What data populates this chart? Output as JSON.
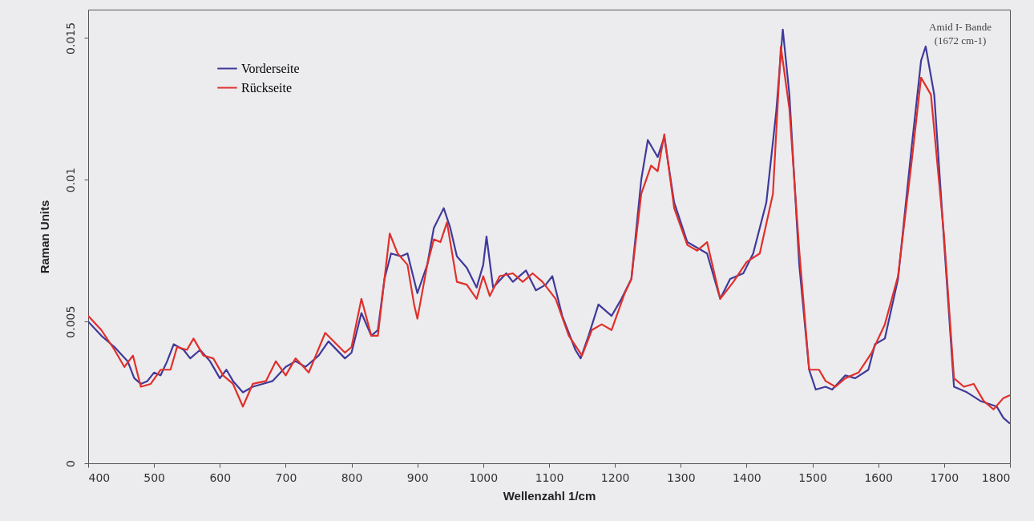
{
  "chart_data": {
    "type": "line",
    "xlabel": "Wellenzahl 1/cm",
    "ylabel": "Raman Units",
    "xlim": [
      400,
      1800
    ],
    "ylim": [
      0,
      0.016
    ],
    "xticks": [
      400,
      500,
      600,
      700,
      800,
      900,
      1000,
      1100,
      1200,
      1300,
      1400,
      1500,
      1600,
      1700,
      1800
    ],
    "yticks": [
      {
        "value": 0,
        "label": "0"
      },
      0.005,
      {
        "value": 0.01,
        "label": "0.01"
      },
      0.015
    ],
    "grid": false,
    "legend": "top left",
    "marker": "none",
    "line_style": "solid",
    "annotations": [
      "Amid I- Bande\n(1672 cm-1)"
    ],
    "series": [
      {
        "name": "Vorderseite",
        "color": "#3f3a9a",
        "x": [
          400,
          420,
          440,
          460,
          470,
          480,
          490,
          500,
          510,
          520,
          530,
          545,
          555,
          570,
          585,
          600,
          610,
          620,
          635,
          650,
          665,
          680,
          700,
          715,
          730,
          750,
          765,
          790,
          800,
          815,
          830,
          840,
          850,
          860,
          875,
          885,
          900,
          915,
          925,
          940,
          950,
          960,
          975,
          990,
          1000,
          1005,
          1015,
          1035,
          1045,
          1065,
          1080,
          1095,
          1105,
          1120,
          1140,
          1148,
          1160,
          1175,
          1195,
          1210,
          1225,
          1240,
          1250,
          1265,
          1275,
          1290,
          1310,
          1340,
          1360,
          1375,
          1395,
          1410,
          1430,
          1445,
          1455,
          1465,
          1480,
          1495,
          1505,
          1520,
          1530,
          1550,
          1565,
          1585,
          1595,
          1610,
          1630,
          1650,
          1665,
          1672,
          1685,
          1700,
          1715,
          1735,
          1755,
          1780,
          1790,
          1800
        ],
        "values": [
          0.005,
          0.0045,
          0.0041,
          0.0036,
          0.003,
          0.0028,
          0.0029,
          0.0032,
          0.0031,
          0.0036,
          0.0042,
          0.004,
          0.0037,
          0.004,
          0.0036,
          0.003,
          0.0033,
          0.0029,
          0.0025,
          0.0027,
          0.0028,
          0.0029,
          0.0034,
          0.0036,
          0.0034,
          0.0038,
          0.0043,
          0.0037,
          0.0039,
          0.0053,
          0.0045,
          0.0047,
          0.0065,
          0.0074,
          0.0073,
          0.0074,
          0.006,
          0.007,
          0.0083,
          0.009,
          0.0083,
          0.0073,
          0.0069,
          0.0062,
          0.007,
          0.008,
          0.0062,
          0.0067,
          0.0064,
          0.0068,
          0.0061,
          0.0063,
          0.0066,
          0.0052,
          0.004,
          0.0037,
          0.0045,
          0.0056,
          0.0052,
          0.0058,
          0.0065,
          0.01,
          0.0114,
          0.0108,
          0.0115,
          0.0092,
          0.0078,
          0.0074,
          0.0058,
          0.0065,
          0.0067,
          0.0074,
          0.0092,
          0.0124,
          0.0153,
          0.013,
          0.007,
          0.0033,
          0.0026,
          0.0027,
          0.0026,
          0.0031,
          0.003,
          0.0033,
          0.0042,
          0.0044,
          0.0065,
          0.011,
          0.0142,
          0.0147,
          0.013,
          0.0078,
          0.0027,
          0.0025,
          0.0022,
          0.002,
          0.0016,
          0.0014
        ]
      },
      {
        "name": "Rückseite",
        "color": "#e0302a",
        "x": [
          400,
          420,
          440,
          455,
          468,
          480,
          495,
          510,
          525,
          535,
          550,
          560,
          575,
          590,
          605,
          620,
          635,
          650,
          670,
          685,
          700,
          715,
          735,
          760,
          790,
          800,
          815,
          830,
          840,
          858,
          870,
          885,
          895,
          900,
          915,
          925,
          935,
          945,
          960,
          975,
          990,
          1000,
          1010,
          1025,
          1045,
          1060,
          1075,
          1090,
          1110,
          1130,
          1150,
          1165,
          1180,
          1195,
          1215,
          1225,
          1240,
          1255,
          1265,
          1275,
          1290,
          1310,
          1325,
          1340,
          1360,
          1380,
          1400,
          1420,
          1440,
          1452,
          1465,
          1480,
          1495,
          1510,
          1520,
          1535,
          1550,
          1570,
          1590,
          1610,
          1630,
          1650,
          1665,
          1680,
          1700,
          1715,
          1730,
          1745,
          1760,
          1775,
          1790,
          1800
        ],
        "values": [
          0.0052,
          0.0047,
          0.004,
          0.0034,
          0.0038,
          0.0027,
          0.0028,
          0.0033,
          0.0033,
          0.0041,
          0.004,
          0.0044,
          0.0038,
          0.0037,
          0.0031,
          0.0028,
          0.002,
          0.0028,
          0.0029,
          0.0036,
          0.0031,
          0.0037,
          0.0032,
          0.0046,
          0.0039,
          0.0041,
          0.0058,
          0.0045,
          0.0045,
          0.0081,
          0.0074,
          0.007,
          0.0056,
          0.0051,
          0.007,
          0.0079,
          0.0078,
          0.0085,
          0.0064,
          0.0063,
          0.0058,
          0.0066,
          0.0059,
          0.0066,
          0.0067,
          0.0064,
          0.0067,
          0.0064,
          0.0058,
          0.0045,
          0.0038,
          0.0047,
          0.0049,
          0.0047,
          0.006,
          0.0065,
          0.0095,
          0.0105,
          0.0103,
          0.0116,
          0.009,
          0.0077,
          0.0075,
          0.0078,
          0.0058,
          0.0064,
          0.0071,
          0.0074,
          0.0095,
          0.0147,
          0.0125,
          0.0075,
          0.0033,
          0.0033,
          0.0029,
          0.0027,
          0.003,
          0.0032,
          0.0039,
          0.0049,
          0.0066,
          0.0105,
          0.0136,
          0.013,
          0.008,
          0.003,
          0.0027,
          0.0028,
          0.0022,
          0.0019,
          0.0023,
          0.0024
        ]
      }
    ]
  }
}
